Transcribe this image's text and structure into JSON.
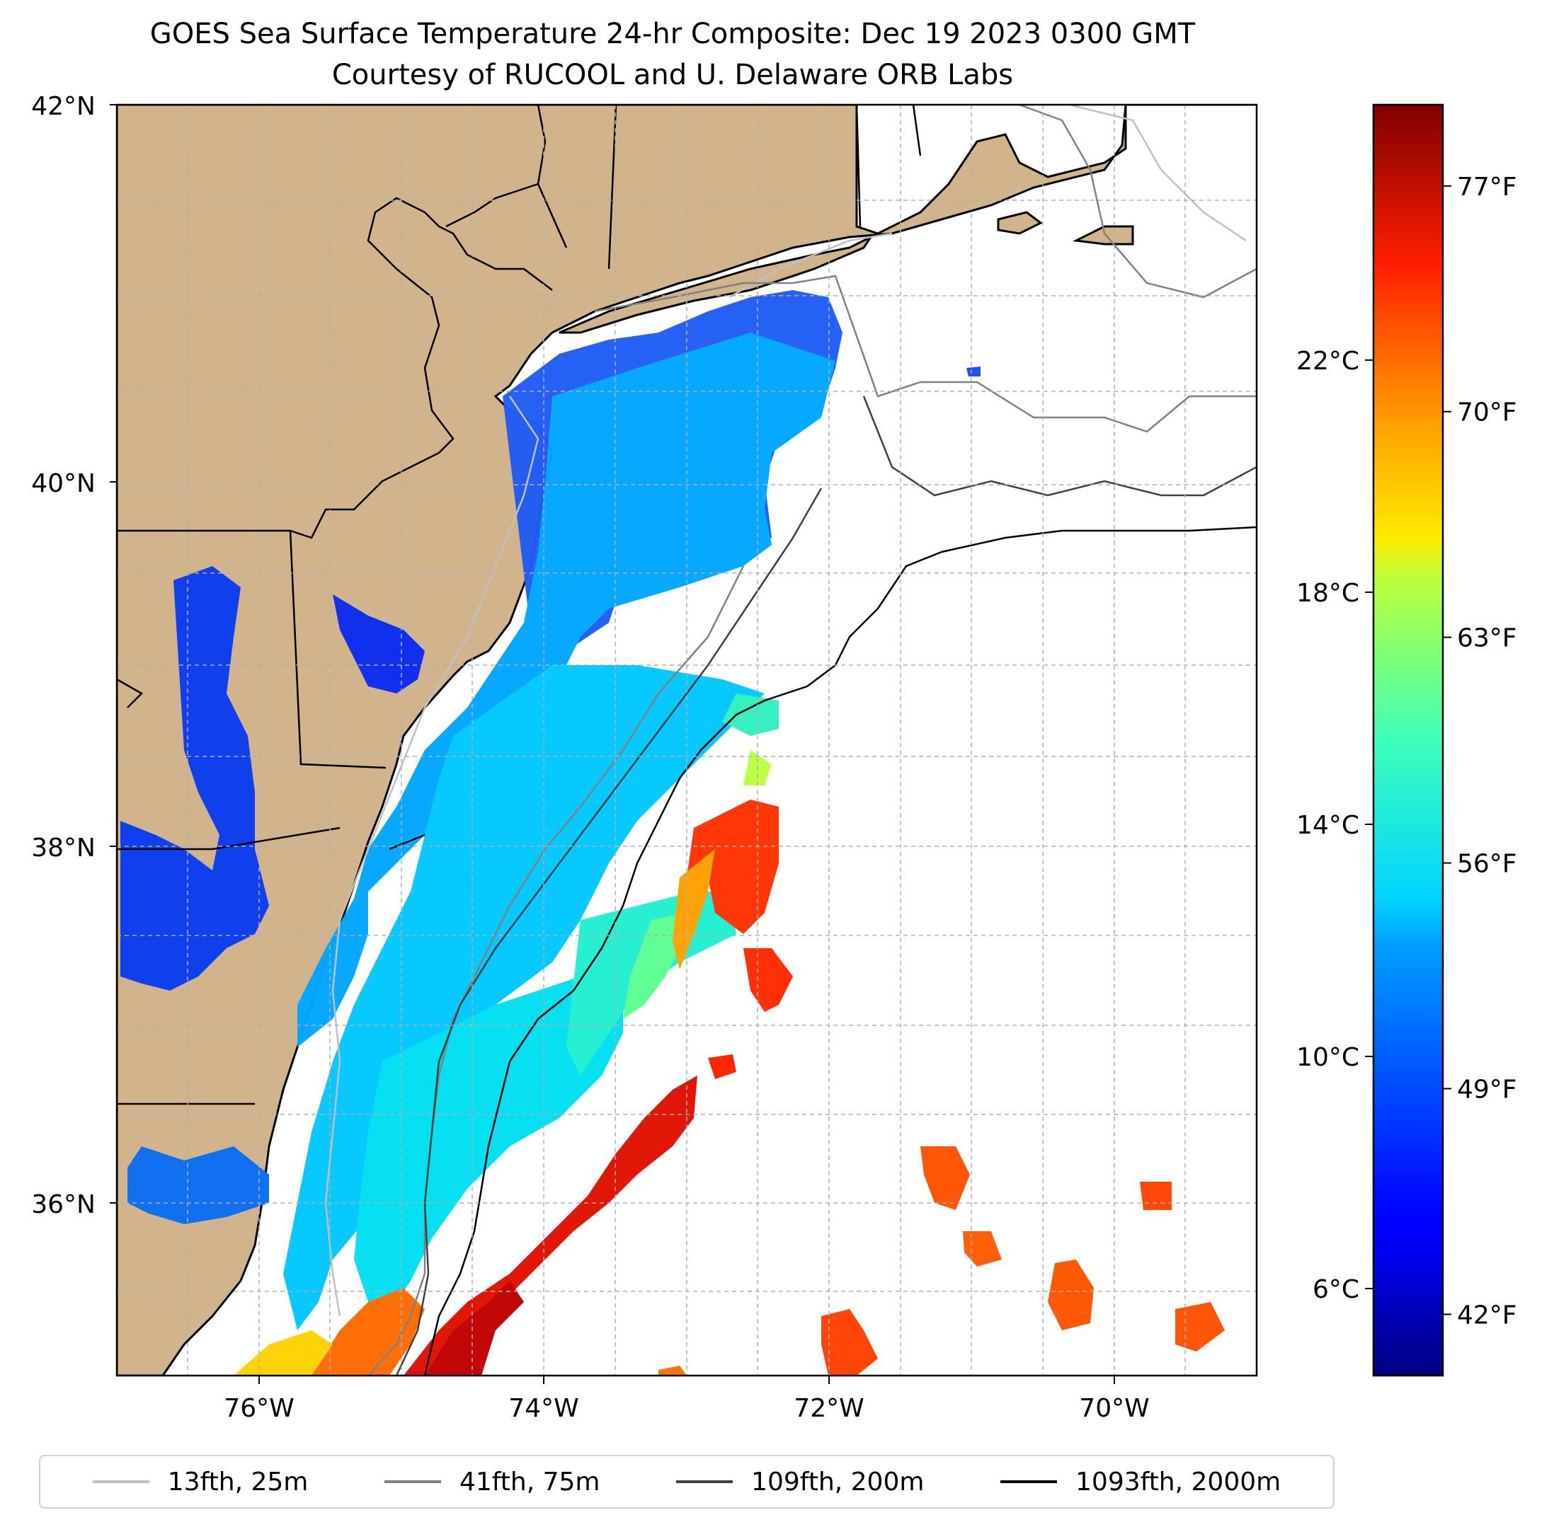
{
  "title": {
    "line1": "GOES Sea Surface Temperature 24-hr Composite: Dec 19 2023 0300 GMT",
    "line2": "Courtesy of RUCOOL and U. Delaware ORB Labs"
  },
  "map": {
    "lat_labels": [
      "42°N",
      "40°N",
      "38°N",
      "36°N"
    ],
    "lon_labels": [
      "76°W",
      "74°W",
      "72°W",
      "70°W"
    ],
    "land_color": "#d2b48c",
    "grid": true,
    "grid_style": "dashed"
  },
  "colorbar": {
    "colormap": "jet",
    "range_c": [
      4.5,
      26.4
    ],
    "celsius_ticks": [
      {
        "value": 22,
        "label": "22°C"
      },
      {
        "value": 18,
        "label": "18°C"
      },
      {
        "value": 14,
        "label": "14°C"
      },
      {
        "value": 10,
        "label": "10°C"
      },
      {
        "value": 6,
        "label": "6°C"
      }
    ],
    "fahrenheit_ticks": [
      {
        "value": 77,
        "label": "77°F"
      },
      {
        "value": 70,
        "label": "70°F"
      },
      {
        "value": 63,
        "label": "63°F"
      },
      {
        "value": 56,
        "label": "56°F"
      },
      {
        "value": 49,
        "label": "49°F"
      },
      {
        "value": 42,
        "label": "42°F"
      }
    ]
  },
  "legend": {
    "placement": "bottom",
    "items": [
      {
        "label": "13fth, 25m",
        "color": "#c0c0c0"
      },
      {
        "label": "41fth, 75m",
        "color": "#808080"
      },
      {
        "label": "109fth, 200m",
        "color": "#404040"
      },
      {
        "label": "1093fth, 2000m",
        "color": "#000000"
      }
    ]
  }
}
